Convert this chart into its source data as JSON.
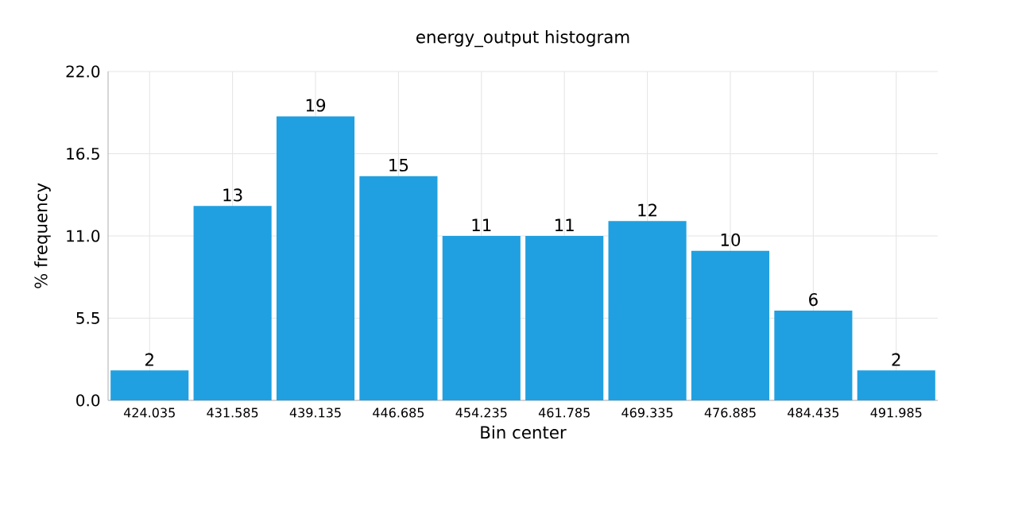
{
  "chart_data": {
    "type": "bar",
    "title": "energy_output histogram",
    "xlabel": "Bin center",
    "ylabel": "% frequency",
    "categories": [
      "424.035",
      "431.585",
      "439.135",
      "446.685",
      "454.235",
      "461.785",
      "469.335",
      "476.885",
      "484.435",
      "491.985"
    ],
    "values": [
      2,
      13,
      19,
      15,
      11,
      11,
      12,
      10,
      6,
      2
    ],
    "color": "#20a0e0",
    "ylim": [
      0,
      22
    ],
    "yticks": [
      {
        "value": 0,
        "label": "0.0"
      },
      {
        "value": 5.5,
        "label": "5.5"
      },
      {
        "value": 11,
        "label": "11.0"
      },
      {
        "value": 16.5,
        "label": "16.5"
      },
      {
        "value": 22,
        "label": "22.0"
      }
    ],
    "grid": true,
    "data_labels": true
  }
}
